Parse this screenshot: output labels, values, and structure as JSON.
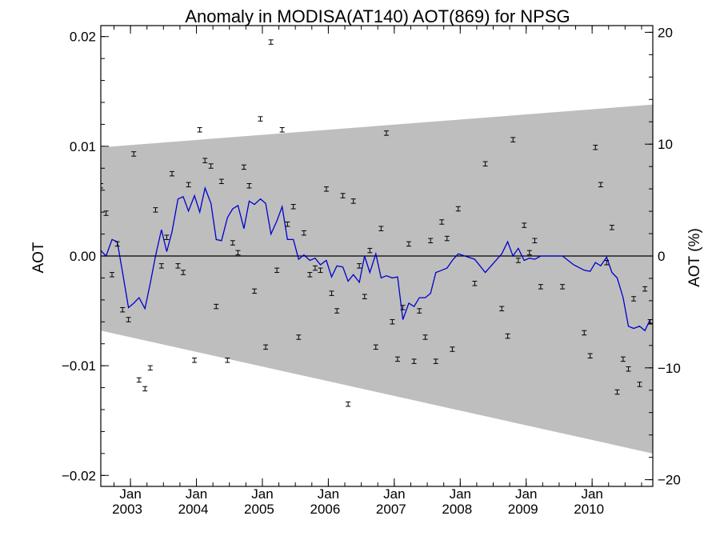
{
  "chart_data": {
    "type": "scatter",
    "title": "Anomaly in MODISA(AT140) AOT(869) for NPSG",
    "ylabel": "AOT",
    "ylabel_right": "AOT (%)",
    "ylim": [
      -0.021,
      0.021
    ],
    "xlim": [
      2002.55,
      2010.92
    ],
    "y2lim": [
      -20.6,
      20.6
    ],
    "yticks": [
      -0.02,
      -0.01,
      0.0,
      0.01,
      0.02
    ],
    "ytick_labels": [
      "−0.02",
      "−0.01",
      "0.00",
      "0.01",
      "0.02"
    ],
    "y2ticks": [
      -20,
      -10,
      0,
      10,
      20
    ],
    "y2tick_labels": [
      "−20",
      "−10",
      "0",
      "10",
      "20"
    ],
    "xticks": [
      {
        "x": 2003.0,
        "month": "Jan",
        "year": "2003"
      },
      {
        "x": 2004.0,
        "month": "Jan",
        "year": "2004"
      },
      {
        "x": 2005.0,
        "month": "Jan",
        "year": "2005"
      },
      {
        "x": 2006.0,
        "month": "Jan",
        "year": "2006"
      },
      {
        "x": 2007.0,
        "month": "Jan",
        "year": "2007"
      },
      {
        "x": 2008.0,
        "month": "Jan",
        "year": "2008"
      },
      {
        "x": 2009.0,
        "month": "Jan",
        "year": "2009"
      },
      {
        "x": 2010.0,
        "month": "Jan",
        "year": "2010"
      }
    ],
    "envelope": {
      "x": [
        2002.55,
        2010.92
      ],
      "upper": [
        0.0099,
        0.0138
      ],
      "lower": [
        -0.0068,
        -0.018
      ],
      "color": "#bebebe"
    },
    "zero_line": 0.0,
    "points": {
      "error": 0.0002,
      "x": [
        2002.55,
        2002.63,
        2002.72,
        2002.8,
        2002.88,
        2002.97,
        2003.05,
        2003.13,
        2003.22,
        2003.3,
        2003.38,
        2003.47,
        2003.55,
        2003.63,
        2003.72,
        2003.8,
        2003.88,
        2003.97,
        2004.05,
        2004.13,
        2004.22,
        2004.3,
        2004.38,
        2004.47,
        2004.55,
        2004.63,
        2004.72,
        2004.8,
        2004.88,
        2004.97,
        2005.05,
        2005.13,
        2005.22,
        2005.3,
        2005.38,
        2005.47,
        2005.55,
        2005.63,
        2005.72,
        2005.8,
        2005.88,
        2005.97,
        2006.05,
        2006.13,
        2006.22,
        2006.3,
        2006.38,
        2006.47,
        2006.55,
        2006.63,
        2006.72,
        2006.8,
        2006.88,
        2006.97,
        2007.05,
        2007.13,
        2007.22,
        2007.3,
        2007.38,
        2007.47,
        2007.55,
        2007.63,
        2007.72,
        2007.8,
        2007.88,
        2007.97,
        2008.22,
        2008.38,
        2008.63,
        2008.72,
        2008.8,
        2008.88,
        2008.97,
        2009.05,
        2009.13,
        2009.22,
        2009.55,
        2009.88,
        2009.97,
        2010.05,
        2010.13,
        2010.22,
        2010.3,
        2010.38,
        2010.47,
        2010.55,
        2010.63,
        2010.72,
        2010.8,
        2010.88
      ],
      "y": [
        0.0064,
        0.0039,
        -0.0017,
        0.0011,
        -0.0049,
        -0.0058,
        0.0093,
        -0.0113,
        -0.0121,
        -0.0102,
        0.0042,
        -0.0009,
        0.0017,
        0.0075,
        -0.0009,
        -0.0015,
        0.0065,
        -0.0095,
        0.0115,
        0.0087,
        0.0082,
        -0.0046,
        0.0068,
        -0.0095,
        0.0012,
        0.0003,
        0.0081,
        0.0064,
        -0.0032,
        0.0125,
        -0.0083,
        0.0195,
        -0.0013,
        0.0115,
        0.0029,
        0.0045,
        -0.0074,
        0.0021,
        -0.0017,
        -0.0011,
        -0.0013,
        0.0061,
        -0.0034,
        -0.005,
        0.0055,
        -0.0135,
        0.005,
        -0.0009,
        -0.0037,
        0.0005,
        -0.0083,
        0.0025,
        0.0112,
        -0.006,
        -0.0094,
        -0.0047,
        0.0011,
        -0.0096,
        -0.005,
        -0.0074,
        0.0014,
        -0.0096,
        0.0031,
        0.0016,
        -0.0085,
        0.0043,
        -0.0025,
        0.0084,
        -0.0048,
        -0.0073,
        0.0106,
        -0.0004,
        0.0028,
        0.0003,
        0.0014,
        -0.0028,
        -0.0028,
        -0.007,
        -0.0091,
        0.0099,
        0.0065,
        -0.0006,
        0.0026,
        -0.0124,
        -0.0094,
        -0.0103,
        -0.0039,
        -0.0117,
        -0.003,
        -0.006
      ]
    },
    "running_mean": {
      "color": "#0000cc",
      "x": [
        2002.55,
        2002.63,
        2002.72,
        2002.8,
        2002.88,
        2002.97,
        2003.05,
        2003.13,
        2003.22,
        2003.3,
        2003.38,
        2003.47,
        2003.55,
        2003.63,
        2003.72,
        2003.8,
        2003.88,
        2003.97,
        2004.05,
        2004.13,
        2004.22,
        2004.3,
        2004.38,
        2004.47,
        2004.55,
        2004.63,
        2004.72,
        2004.8,
        2004.88,
        2004.97,
        2005.05,
        2005.13,
        2005.22,
        2005.3,
        2005.38,
        2005.47,
        2005.55,
        2005.63,
        2005.72,
        2005.8,
        2005.88,
        2005.97,
        2006.05,
        2006.13,
        2006.22,
        2006.3,
        2006.38,
        2006.47,
        2006.55,
        2006.63,
        2006.72,
        2006.8,
        2006.88,
        2006.97,
        2007.05,
        2007.13,
        2007.22,
        2007.3,
        2007.38,
        2007.47,
        2007.55,
        2007.63,
        2007.72,
        2007.8,
        2007.88,
        2007.97,
        2008.22,
        2008.38,
        2008.63,
        2008.72,
        2008.8,
        2008.88,
        2008.97,
        2009.05,
        2009.13,
        2009.22,
        2009.55,
        2009.72,
        2009.88,
        2009.97,
        2010.05,
        2010.13,
        2010.22,
        2010.3,
        2010.38,
        2010.47,
        2010.55,
        2010.63,
        2010.72,
        2010.8,
        2010.88
      ],
      "y": [
        0.0005,
        0.0,
        0.0015,
        0.0013,
        -0.0015,
        -0.0047,
        -0.0043,
        -0.0038,
        -0.0048,
        -0.0025,
        0.0,
        0.0024,
        0.0004,
        0.0022,
        0.0052,
        0.0054,
        0.0041,
        0.0055,
        0.004,
        0.0062,
        0.0048,
        0.0015,
        0.0014,
        0.0035,
        0.0043,
        0.0046,
        0.0025,
        0.005,
        0.0047,
        0.0052,
        0.0048,
        0.002,
        0.0032,
        0.0045,
        0.0015,
        0.0015,
        -0.0003,
        0.0001,
        -0.0004,
        -0.0002,
        -0.0008,
        -0.0004,
        -0.0019,
        -0.0009,
        -0.001,
        -0.0023,
        -0.0017,
        -0.0024,
        0.0,
        -0.0015,
        0.0002,
        -0.002,
        -0.0018,
        -0.002,
        -0.0019,
        -0.0058,
        -0.0043,
        -0.0046,
        -0.0038,
        -0.0038,
        -0.0034,
        -0.0015,
        -0.0013,
        -0.0011,
        -0.0004,
        0.0002,
        -0.0003,
        -0.0015,
        0.0002,
        0.0013,
        0.0,
        0.0007,
        -0.0004,
        -0.0002,
        -0.0003,
        0.0,
        0.0,
        -0.0008,
        -0.0013,
        -0.0014,
        -0.0006,
        -0.0009,
        -0.0001,
        -0.0015,
        -0.002,
        -0.0038,
        -0.0064,
        -0.0066,
        -0.0064,
        -0.0068,
        -0.0058
      ]
    }
  }
}
